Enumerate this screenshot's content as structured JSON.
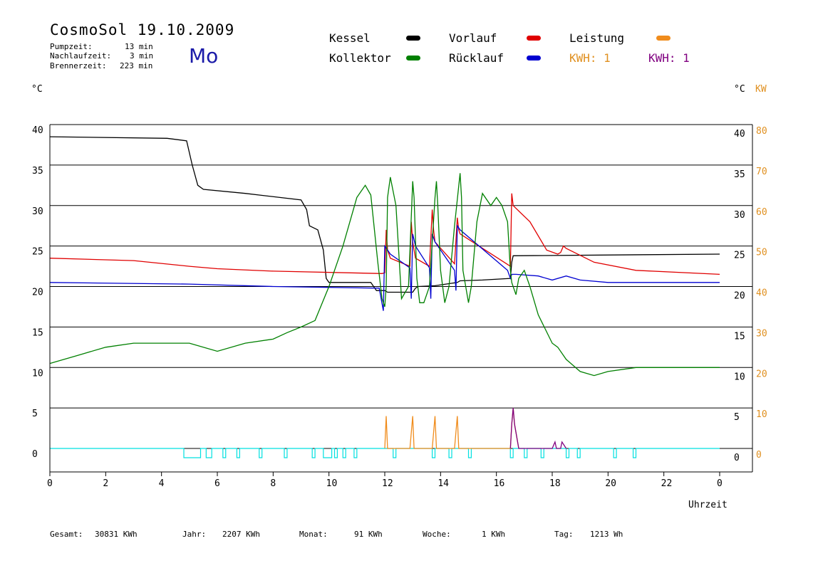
{
  "header": {
    "title": "CosmoSol 19.10.2009",
    "weekday": "Mo",
    "stats": [
      {
        "label": "Pumpzeit:",
        "value": "13 min"
      },
      {
        "label": "Nachlaufzeit:",
        "value": "3 min"
      },
      {
        "label": "Brennerzeit:",
        "value": "223 min"
      }
    ]
  },
  "legend": {
    "kessel": {
      "label": "Kessel",
      "color": "#000000"
    },
    "vorlauf": {
      "label": "Vorlauf",
      "color": "#e00000"
    },
    "leistung": {
      "label": "Leistung",
      "color": "#f08c1c"
    },
    "kollektor": {
      "label": "Kollektor",
      "color": "#008000"
    },
    "ruecklauf": {
      "label": "Rücklauf",
      "color": "#0000d0"
    },
    "kwh1": {
      "label": "KWH: 1",
      "color": "#e09020"
    },
    "kwh2": {
      "label": "KWH: 1",
      "color": "#800080"
    }
  },
  "axes": {
    "left_unit": "°C",
    "right_unit": "°C",
    "right_unit2": "KW",
    "xlabel": "Uhrzeit"
  },
  "footer": [
    {
      "label": "Gesamt:",
      "value": "30831 KWh"
    },
    {
      "label": "Jahr:",
      "value": "2207 KWh"
    },
    {
      "label": "Monat:",
      "value": "91 KWh"
    },
    {
      "label": "Woche:",
      "value": "1 KWh"
    },
    {
      "label": "Tag:",
      "value": "1213 Wh"
    }
  ],
  "chart_data": {
    "type": "line",
    "xlim": [
      0,
      24
    ],
    "ylim": [
      -3,
      40
    ],
    "y2lim": [
      -6,
      80
    ],
    "x_ticks": [
      "0",
      "2",
      "4",
      "6",
      "8",
      "10",
      "12",
      "14",
      "16",
      "18",
      "20",
      "22",
      "0"
    ],
    "y_ticks": [
      "0",
      "5",
      "10",
      "15",
      "20",
      "25",
      "30",
      "35",
      "40"
    ],
    "y2_ticks": [
      "0",
      "10",
      "20",
      "30",
      "40",
      "50",
      "60",
      "70",
      "80"
    ],
    "grid": "horizontal",
    "series": [
      {
        "name": "Kessel",
        "color": "#000000",
        "x": [
          0,
          4.2,
          4.9,
          5.1,
          5.3,
          5.5,
          7,
          7.5,
          9,
          9.2,
          9.3,
          9.6,
          9.8,
          9.9,
          10,
          11.5,
          11.7,
          12.0,
          12.1,
          12.3,
          13,
          13.1,
          13.2,
          13.8,
          14.6,
          14.7,
          15.5,
          16.5,
          16.55,
          16.6,
          24
        ],
        "y": [
          38.5,
          38.3,
          38,
          35,
          32.5,
          32,
          31.5,
          31.3,
          30.7,
          29.5,
          27.5,
          27,
          24.5,
          21,
          20.5,
          20.5,
          19.5,
          19.5,
          19.3,
          19.3,
          19.3,
          19.8,
          20,
          20.1,
          20.5,
          20.7,
          20.8,
          21,
          23,
          23.8,
          24
        ]
      },
      {
        "name": "Vorlauf",
        "color": "#e00000",
        "x": [
          0,
          3,
          5,
          6,
          8,
          11.9,
          12.0,
          12.05,
          12.1,
          12.2,
          12.9,
          12.95,
          13.0,
          13.1,
          13.6,
          13.7,
          13.75,
          13.8,
          14.5,
          14.6,
          14.65,
          14.7,
          16.5,
          16.55,
          16.6,
          17.2,
          17.8,
          18.2,
          18.3,
          18.4,
          18.5,
          19.5,
          21,
          24
        ],
        "y": [
          23.5,
          23.2,
          22.5,
          22.2,
          21.9,
          21.6,
          21.7,
          27,
          24.5,
          23.5,
          22.5,
          28,
          25.5,
          23.5,
          22.5,
          29.5,
          27,
          25.5,
          22.8,
          28.5,
          27,
          26.5,
          22.5,
          31.5,
          30,
          28,
          24.5,
          24,
          24.2,
          25,
          24.7,
          23,
          22,
          21.5
        ]
      },
      {
        "name": "Rücklauf",
        "color": "#0000d0",
        "x": [
          0,
          5,
          8,
          11.8,
          11.95,
          12.0,
          12.1,
          12.2,
          12.9,
          12.95,
          13.0,
          13.1,
          13.6,
          13.65,
          13.7,
          13.8,
          14.5,
          14.55,
          14.6,
          14.7,
          16.4,
          16.5,
          16.55,
          16.7,
          17.5,
          18,
          18.5,
          19,
          20,
          24
        ],
        "y": [
          20.5,
          20.3,
          20,
          19.8,
          17,
          25,
          24.5,
          24,
          22.3,
          18.5,
          26.5,
          25,
          22.3,
          18.5,
          26.5,
          25.5,
          22,
          19.5,
          27.5,
          27,
          22,
          21,
          21.5,
          21.5,
          21.3,
          20.8,
          21.3,
          20.8,
          20.5,
          20.5
        ]
      },
      {
        "name": "Kollektor",
        "color": "#008000",
        "x": [
          0,
          1,
          2,
          3,
          4,
          5,
          6,
          7,
          8,
          8.5,
          9,
          9.5,
          10,
          10.5,
          11,
          11.3,
          11.5,
          11.6,
          11.75,
          11.9,
          12.0,
          12.05,
          12.1,
          12.2,
          12.4,
          12.6,
          12.85,
          13.0,
          13.05,
          13.15,
          13.25,
          13.4,
          13.6,
          13.8,
          13.85,
          13.9,
          14.0,
          14.15,
          14.3,
          14.5,
          14.7,
          14.75,
          14.8,
          15,
          15.1,
          15.3,
          15.5,
          15.8,
          16.0,
          16.2,
          16.4,
          16.5,
          16.55,
          16.7,
          16.8,
          17.0,
          17.2,
          17.5,
          18,
          18.2,
          18.5,
          19,
          19.5,
          20,
          21,
          22,
          23,
          24
        ],
        "y": [
          10.5,
          11.5,
          12.5,
          13,
          13,
          13,
          12,
          13,
          13.5,
          14.3,
          15,
          15.8,
          20,
          25,
          31,
          32.5,
          31.3,
          28,
          23,
          18.5,
          17.5,
          20,
          31,
          33.5,
          30,
          18.5,
          20,
          33,
          31,
          21,
          18,
          18,
          20,
          31,
          33,
          30,
          22,
          18,
          20,
          27.5,
          34,
          31,
          22,
          18,
          20,
          28,
          31.5,
          30,
          31,
          30,
          28,
          22,
          20.5,
          19,
          21,
          22,
          20,
          16.5,
          13,
          12.5,
          11,
          9.5,
          9,
          9.5,
          10,
          10,
          10,
          10
        ]
      },
      {
        "name": "Leistung",
        "color": "#f08c1c",
        "x": [
          12.0,
          12.05,
          12.1,
          12.2,
          12.9,
          13.0,
          13.05,
          13.15,
          13.7,
          13.8,
          13.85,
          13.95,
          14.5,
          14.6,
          14.65,
          14.75,
          16.5,
          16.55,
          16.6,
          16.65,
          16.8
        ],
        "y": [
          0,
          4,
          0,
          0,
          0,
          4,
          0,
          0,
          0,
          4,
          0,
          0,
          0,
          4,
          0,
          0,
          0,
          3,
          5,
          3,
          0
        ]
      },
      {
        "name": "KWH",
        "color": "#800080",
        "x": [
          16.5,
          16.55,
          16.6,
          16.65,
          16.8,
          18.0,
          18.1,
          18.15,
          18.3,
          18.35,
          18.5
        ],
        "y": [
          0,
          3,
          5,
          3,
          0,
          0,
          0.8,
          0,
          0,
          0.8,
          0
        ]
      }
    ],
    "burner_pulses": [
      [
        4.8,
        5.4
      ],
      [
        5.6,
        5.8
      ],
      [
        6.2,
        6.3
      ],
      [
        6.7,
        6.8
      ],
      [
        7.5,
        7.6
      ],
      [
        8.4,
        8.5
      ],
      [
        9.4,
        9.5
      ],
      [
        9.8,
        10.1
      ],
      [
        10.2,
        10.3
      ],
      [
        10.5,
        10.6
      ],
      [
        10.9,
        11.0
      ],
      [
        12.3,
        12.4
      ],
      [
        13.7,
        13.8
      ],
      [
        14.3,
        14.4
      ],
      [
        15.0,
        15.1
      ],
      [
        16.5,
        16.6
      ],
      [
        17.0,
        17.1
      ],
      [
        17.6,
        17.7
      ],
      [
        18.5,
        18.6
      ],
      [
        18.9,
        19.0
      ],
      [
        20.2,
        20.3
      ],
      [
        20.9,
        21.0
      ]
    ]
  }
}
